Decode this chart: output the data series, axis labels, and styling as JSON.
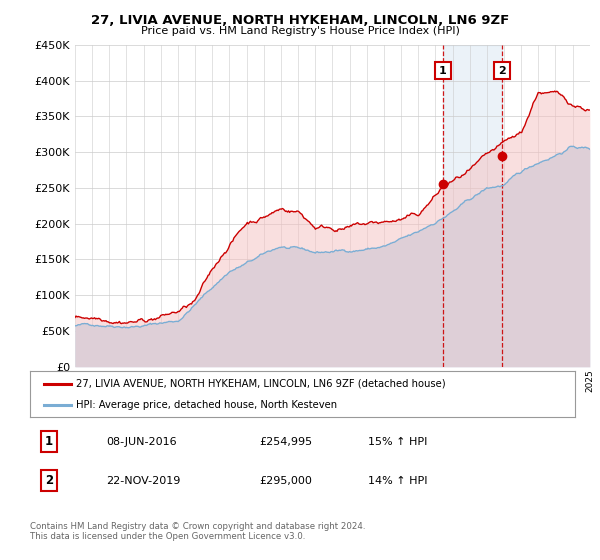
{
  "title": "27, LIVIA AVENUE, NORTH HYKEHAM, LINCOLN, LN6 9ZF",
  "subtitle": "Price paid vs. HM Land Registry's House Price Index (HPI)",
  "legend_line1": "27, LIVIA AVENUE, NORTH HYKEHAM, LINCOLN, LN6 9ZF (detached house)",
  "legend_line2": "HPI: Average price, detached house, North Kesteven",
  "annotation1_label": "1",
  "annotation1_date": "08-JUN-2016",
  "annotation1_price": "£254,995",
  "annotation1_hpi": "15% ↑ HPI",
  "annotation1_year": 2016.44,
  "annotation2_label": "2",
  "annotation2_date": "22-NOV-2019",
  "annotation2_price": "£295,000",
  "annotation2_hpi": "14% ↑ HPI",
  "annotation2_year": 2019.89,
  "footer1": "Contains HM Land Registry data © Crown copyright and database right 2024.",
  "footer2": "This data is licensed under the Open Government Licence v3.0.",
  "red_color": "#cc0000",
  "blue_color": "#7aadd4",
  "blue_fill": "#c8dff0",
  "red_fill": "#f5c0c0",
  "background_color": "#ffffff",
  "ylim_max": 450000,
  "ylim_min": 0,
  "xmin": 1995,
  "xmax": 2025
}
